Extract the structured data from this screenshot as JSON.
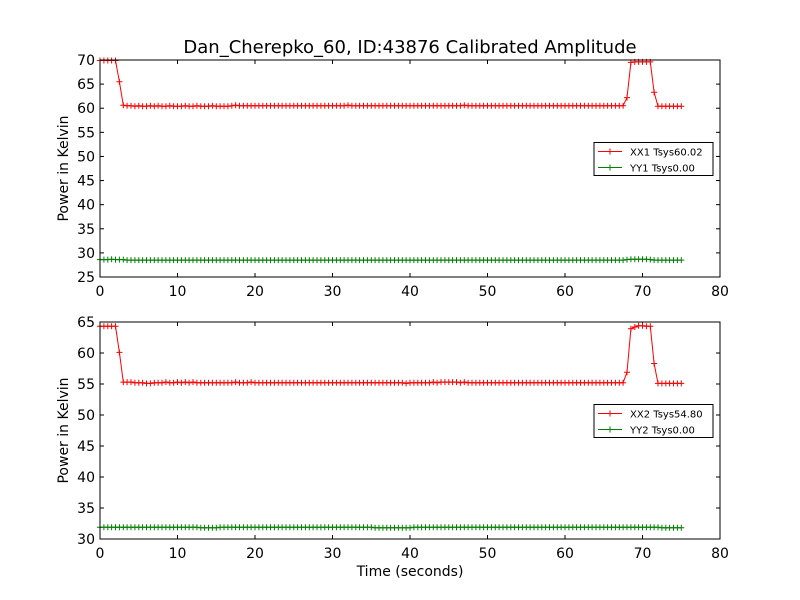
{
  "chart_data": {
    "type": "line",
    "title": "Dan_Cherepko_60, ID:43876 Calibrated Amplitude",
    "xlabel": "Time (seconds)",
    "marker": "+",
    "colors": {
      "red": "#ff0000",
      "green": "#008000"
    },
    "panels": [
      {
        "ylabel": "Power in Kelvin",
        "xlim": [
          0,
          80
        ],
        "ylim": [
          25,
          70
        ],
        "xticks": [
          "0",
          "10",
          "20",
          "30",
          "40",
          "50",
          "60",
          "70",
          "80"
        ],
        "yticks": [
          "25",
          "30",
          "35",
          "40",
          "45",
          "50",
          "55",
          "60",
          "65",
          "70"
        ],
        "legend_position": "center-right",
        "series": [
          {
            "name": "XX1 Tsys60.02",
            "color": "#ff0000",
            "x_start": 0,
            "x_step": 0.5,
            "baseline": 60.4,
            "values": [
              69.9,
              69.9,
              69.9,
              69.9,
              69.9,
              65.5,
              60.6,
              60.5,
              60.5,
              60.4,
              60.5,
              60.4,
              60.4,
              60.5,
              60.4,
              60.5,
              60.4,
              60.4,
              60.5,
              60.4,
              60.4,
              60.4,
              60.5,
              60.4,
              60.4,
              60.5,
              60.4,
              60.4,
              60.4,
              60.5,
              60.4,
              60.4,
              60.4,
              60.4,
              60.5,
              60.6,
              60.5,
              60.5,
              60.5,
              60.5,
              60.5,
              60.5,
              60.5,
              60.5,
              60.5,
              60.5,
              60.5,
              60.5,
              60.5,
              60.5,
              60.5,
              60.5,
              60.5,
              60.5,
              60.5,
              60.5,
              60.5,
              60.5,
              60.5,
              60.5,
              60.5,
              60.5,
              60.5,
              60.5,
              60.6,
              60.5,
              60.5,
              60.5,
              60.5,
              60.5,
              60.5,
              60.5,
              60.5,
              60.5,
              60.5,
              60.5,
              60.5,
              60.5,
              60.5,
              60.5,
              60.5,
              60.5,
              60.5,
              60.5,
              60.5,
              60.5,
              60.5,
              60.5,
              60.5,
              60.5,
              60.5,
              60.5,
              60.5,
              60.5,
              60.6,
              60.5,
              60.5,
              60.5,
              60.5,
              60.5,
              60.5,
              60.5,
              60.5,
              60.5,
              60.5,
              60.5,
              60.5,
              60.5,
              60.5,
              60.5,
              60.5,
              60.5,
              60.5,
              60.5,
              60.5,
              60.5,
              60.5,
              60.5,
              60.5,
              60.5,
              60.5,
              60.5,
              60.5,
              60.5,
              60.5,
              60.5,
              60.5,
              60.5,
              60.5,
              60.5,
              60.5,
              60.5,
              60.5,
              60.5,
              60.5,
              60.5,
              62.2,
              69.5,
              69.6,
              69.6,
              69.6,
              69.6,
              69.6,
              63.3,
              60.4,
              60.4,
              60.4,
              60.4,
              60.4,
              60.4,
              60.4
            ]
          },
          {
            "name": "YY1 Tsys0.00",
            "color": "#008000",
            "x_start": 0,
            "x_step": 0.5,
            "values": [
              28.6,
              28.6,
              28.6,
              28.7,
              28.6,
              28.6,
              28.6,
              28.5,
              28.5,
              28.5,
              28.5,
              28.5,
              28.5,
              28.5,
              28.5,
              28.5,
              28.5,
              28.5,
              28.5,
              28.5,
              28.5,
              28.5,
              28.5,
              28.5,
              28.5,
              28.5,
              28.5,
              28.5,
              28.5,
              28.5,
              28.5,
              28.5,
              28.5,
              28.5,
              28.5,
              28.5,
              28.5,
              28.5,
              28.5,
              28.5,
              28.5,
              28.5,
              28.5,
              28.5,
              28.5,
              28.5,
              28.5,
              28.5,
              28.5,
              28.5,
              28.5,
              28.5,
              28.5,
              28.5,
              28.5,
              28.5,
              28.5,
              28.5,
              28.5,
              28.5,
              28.5,
              28.5,
              28.5,
              28.5,
              28.5,
              28.5,
              28.5,
              28.5,
              28.5,
              28.5,
              28.5,
              28.5,
              28.5,
              28.5,
              28.5,
              28.5,
              28.5,
              28.5,
              28.5,
              28.5,
              28.5,
              28.5,
              28.5,
              28.5,
              28.5,
              28.5,
              28.5,
              28.5,
              28.5,
              28.5,
              28.5,
              28.5,
              28.5,
              28.5,
              28.5,
              28.5,
              28.5,
              28.5,
              28.5,
              28.5,
              28.5,
              28.5,
              28.5,
              28.5,
              28.5,
              28.5,
              28.5,
              28.5,
              28.5,
              28.5,
              28.5,
              28.5,
              28.5,
              28.5,
              28.5,
              28.5,
              28.5,
              28.5,
              28.5,
              28.5,
              28.5,
              28.5,
              28.5,
              28.5,
              28.5,
              28.5,
              28.5,
              28.5,
              28.5,
              28.5,
              28.5,
              28.5,
              28.5,
              28.5,
              28.5,
              28.5,
              28.6,
              28.7,
              28.7,
              28.7,
              28.7,
              28.7,
              28.6,
              28.5,
              28.5,
              28.5,
              28.5,
              28.5,
              28.5,
              28.5,
              28.5
            ]
          }
        ]
      },
      {
        "ylabel": "Power in Kelvin",
        "xlim": [
          0,
          80
        ],
        "ylim": [
          30,
          65
        ],
        "xticks": [
          "0",
          "10",
          "20",
          "30",
          "40",
          "50",
          "60",
          "70",
          "80"
        ],
        "yticks": [
          "30",
          "35",
          "40",
          "45",
          "50",
          "55",
          "60",
          "65"
        ],
        "legend_position": "center-right",
        "series": [
          {
            "name": "XX2 Tsys54.80",
            "color": "#ff0000",
            "x_start": 0,
            "x_step": 0.5,
            "values": [
              64.3,
              64.3,
              64.3,
              64.3,
              64.3,
              60.1,
              55.3,
              55.3,
              55.3,
              55.2,
              55.2,
              55.2,
              55.1,
              55.1,
              55.2,
              55.2,
              55.2,
              55.3,
              55.2,
              55.2,
              55.3,
              55.2,
              55.3,
              55.2,
              55.3,
              55.2,
              55.2,
              55.2,
              55.2,
              55.2,
              55.2,
              55.2,
              55.2,
              55.2,
              55.2,
              55.3,
              55.2,
              55.2,
              55.2,
              55.3,
              55.2,
              55.2,
              55.2,
              55.2,
              55.2,
              55.2,
              55.2,
              55.2,
              55.2,
              55.2,
              55.2,
              55.2,
              55.2,
              55.2,
              55.2,
              55.2,
              55.2,
              55.2,
              55.2,
              55.2,
              55.2,
              55.2,
              55.2,
              55.2,
              55.2,
              55.2,
              55.2,
              55.2,
              55.2,
              55.2,
              55.2,
              55.2,
              55.2,
              55.2,
              55.2,
              55.2,
              55.2,
              55.2,
              55.2,
              55.1,
              55.2,
              55.2,
              55.2,
              55.2,
              55.2,
              55.2,
              55.3,
              55.2,
              55.3,
              55.3,
              55.3,
              55.3,
              55.3,
              55.2,
              55.3,
              55.2,
              55.2,
              55.2,
              55.2,
              55.2,
              55.2,
              55.2,
              55.2,
              55.2,
              55.2,
              55.2,
              55.2,
              55.2,
              55.2,
              55.2,
              55.2,
              55.2,
              55.2,
              55.2,
              55.2,
              55.2,
              55.2,
              55.2,
              55.2,
              55.2,
              55.2,
              55.2,
              55.2,
              55.2,
              55.2,
              55.2,
              55.2,
              55.2,
              55.2,
              55.2,
              55.2,
              55.2,
              55.2,
              55.2,
              55.2,
              55.2,
              56.9,
              63.9,
              64.2,
              64.4,
              64.4,
              64.3,
              64.3,
              58.3,
              55.1,
              55.1,
              55.1,
              55.1,
              55.1,
              55.1,
              55.1
            ]
          },
          {
            "name": "YY2 Tsys0.00",
            "color": "#008000",
            "x_start": 0,
            "x_step": 0.5,
            "values": [
              31.9,
              31.9,
              31.9,
              31.9,
              31.9,
              31.9,
              31.9,
              31.9,
              31.9,
              31.9,
              31.9,
              31.9,
              31.9,
              31.9,
              31.9,
              31.9,
              31.9,
              31.9,
              31.9,
              31.9,
              31.9,
              31.9,
              31.9,
              31.9,
              31.9,
              31.9,
              31.8,
              31.8,
              31.8,
              31.8,
              31.8,
              31.9,
              31.9,
              31.9,
              31.9,
              31.9,
              31.9,
              31.9,
              31.9,
              31.9,
              31.9,
              31.9,
              31.9,
              31.9,
              31.9,
              31.9,
              31.9,
              31.9,
              31.9,
              31.9,
              31.9,
              31.9,
              31.9,
              31.9,
              31.9,
              31.9,
              31.9,
              31.9,
              31.9,
              31.9,
              31.9,
              31.9,
              31.9,
              31.9,
              31.9,
              31.9,
              31.9,
              31.9,
              31.9,
              31.9,
              31.9,
              31.8,
              31.8,
              31.8,
              31.8,
              31.8,
              31.8,
              31.8,
              31.8,
              31.8,
              31.8,
              31.9,
              31.9,
              31.9,
              31.9,
              31.9,
              31.9,
              31.9,
              31.9,
              31.9,
              31.9,
              31.9,
              31.9,
              31.9,
              31.9,
              31.9,
              31.9,
              31.9,
              31.9,
              31.9,
              31.9,
              31.9,
              31.9,
              31.9,
              31.9,
              31.9,
              31.9,
              31.9,
              31.9,
              31.9,
              31.9,
              31.9,
              31.9,
              31.9,
              31.9,
              31.9,
              31.9,
              31.9,
              31.9,
              31.9,
              31.9,
              31.9,
              31.9,
              31.9,
              31.9,
              31.9,
              31.9,
              31.9,
              31.9,
              31.9,
              31.9,
              31.9,
              31.9,
              31.9,
              31.9,
              31.9,
              31.9,
              31.9,
              31.9,
              31.9,
              31.9,
              31.9,
              31.9,
              31.9,
              31.9,
              31.8,
              31.8,
              31.8,
              31.8,
              31.8,
              31.8
            ]
          }
        ]
      }
    ]
  }
}
